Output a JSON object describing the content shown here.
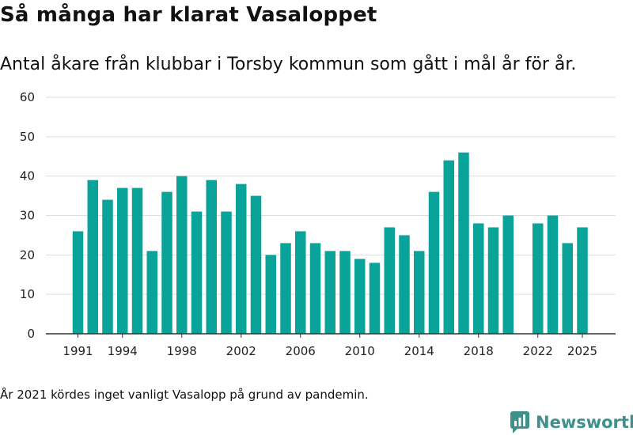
{
  "header": {
    "title": "Så många har klarat Vasaloppet",
    "subtitle": "Antal åkare från klubbar i Torsby kommun som gått i mål år för år."
  },
  "footer": {
    "note": "År 2021 kördes inget vanligt Vasalopp på grund av pandemin.",
    "brand": "Newsworthy"
  },
  "colors": {
    "bar": "#0aa39a",
    "grid": "#dddddd",
    "axis": "#333333",
    "brand": "#3f8f8b"
  },
  "chart_data": {
    "type": "bar",
    "x": [
      1991,
      1992,
      1993,
      1994,
      1995,
      1996,
      1997,
      1998,
      1999,
      2000,
      2001,
      2002,
      2003,
      2004,
      2005,
      2006,
      2007,
      2008,
      2009,
      2010,
      2011,
      2012,
      2013,
      2014,
      2015,
      2016,
      2017,
      2018,
      2019,
      2020,
      2021,
      2022,
      2023,
      2024,
      2025
    ],
    "values": [
      26,
      39,
      34,
      37,
      37,
      21,
      36,
      40,
      31,
      39,
      31,
      38,
      35,
      20,
      23,
      26,
      23,
      21,
      21,
      19,
      18,
      27,
      25,
      21,
      36,
      44,
      46,
      28,
      27,
      30,
      null,
      28,
      30,
      23,
      27
    ],
    "xticks": [
      1991,
      1994,
      1998,
      2002,
      2006,
      2010,
      2014,
      2018,
      2022,
      2025
    ],
    "yticks": [
      0,
      10,
      20,
      30,
      40,
      50,
      60
    ],
    "ylim": [
      0,
      60
    ],
    "grid": true,
    "title": "Så många har klarat Vasaloppet"
  }
}
